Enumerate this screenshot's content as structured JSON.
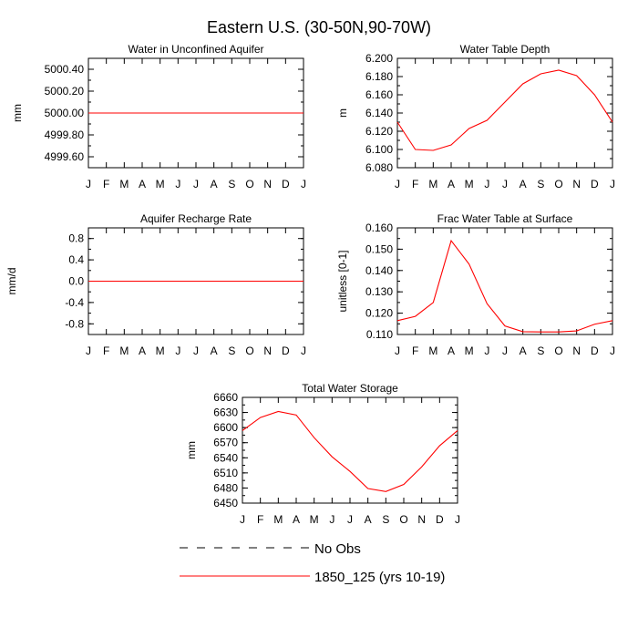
{
  "figure": {
    "title": "Eastern U.S. (30-50N,90-70W)",
    "colors": {
      "model": "#ff0000",
      "obs": "#000000",
      "axes": "#000000"
    }
  },
  "legend": {
    "entries": [
      {
        "label": "No Obs",
        "style": "dashed",
        "color": "#000000"
      },
      {
        "label": "1850_125 (yrs 10-19)",
        "style": "solid",
        "color": "#ff0000"
      }
    ]
  },
  "chart_data": [
    {
      "type": "line",
      "title": "Water in Unconfined Aquifer",
      "xlabel": "",
      "ylabel": "mm",
      "categories": [
        "J",
        "F",
        "M",
        "A",
        "M",
        "J",
        "J",
        "A",
        "S",
        "O",
        "N",
        "D",
        "J"
      ],
      "ylim": [
        4999.5,
        5000.5
      ],
      "yticks": [
        4999.6,
        4999.8,
        5000.0,
        5000.2,
        5000.4
      ],
      "ytick_labels": [
        "4999.60",
        "4999.80",
        "5000.00",
        "5000.20",
        "5000.40"
      ],
      "series": [
        {
          "name": "1850_125 (yrs 10-19)",
          "color": "#ff0000",
          "values": [
            5000,
            5000,
            5000,
            5000,
            5000,
            5000,
            5000,
            5000,
            5000,
            5000,
            5000,
            5000,
            5000
          ]
        }
      ]
    },
    {
      "type": "line",
      "title": "Water Table Depth",
      "xlabel": "",
      "ylabel": "m",
      "categories": [
        "J",
        "F",
        "M",
        "A",
        "M",
        "J",
        "J",
        "A",
        "S",
        "O",
        "N",
        "D",
        "J"
      ],
      "ylim": [
        6.08,
        6.2
      ],
      "yticks": [
        6.08,
        6.1,
        6.12,
        6.14,
        6.16,
        6.18,
        6.2
      ],
      "ytick_labels": [
        "6.080",
        "6.100",
        "6.120",
        "6.140",
        "6.160",
        "6.180",
        "6.200"
      ],
      "series": [
        {
          "name": "1850_125 (yrs 10-19)",
          "color": "#ff0000",
          "values": [
            6.13,
            6.1,
            6.099,
            6.105,
            6.123,
            6.132,
            6.152,
            6.172,
            6.183,
            6.187,
            6.181,
            6.16,
            6.13
          ]
        }
      ]
    },
    {
      "type": "line",
      "title": "Aquifer Recharge Rate",
      "xlabel": "",
      "ylabel": "mm/d",
      "categories": [
        "J",
        "F",
        "M",
        "A",
        "M",
        "J",
        "J",
        "A",
        "S",
        "O",
        "N",
        "D",
        "J"
      ],
      "ylim": [
        -1.0,
        1.0
      ],
      "yticks": [
        -0.8,
        -0.4,
        0.0,
        0.4,
        0.8
      ],
      "ytick_labels": [
        "-0.8",
        "-0.4",
        "0.0",
        "0.4",
        "0.8"
      ],
      "series": [
        {
          "name": "1850_125 (yrs 10-19)",
          "color": "#ff0000",
          "values": [
            0,
            0,
            0,
            0,
            0,
            0,
            0,
            0,
            0,
            0,
            0,
            0,
            0
          ]
        }
      ]
    },
    {
      "type": "line",
      "title": "Frac Water Table at Surface",
      "xlabel": "",
      "ylabel": "unitless [0-1]",
      "categories": [
        "J",
        "F",
        "M",
        "A",
        "M",
        "J",
        "J",
        "A",
        "S",
        "O",
        "N",
        "D",
        "J"
      ],
      "ylim": [
        0.11,
        0.16
      ],
      "yticks": [
        0.11,
        0.12,
        0.13,
        0.14,
        0.15,
        0.16
      ],
      "ytick_labels": [
        "0.110",
        "0.120",
        "0.130",
        "0.140",
        "0.150",
        "0.160"
      ],
      "series": [
        {
          "name": "1850_125 (yrs 10-19)",
          "color": "#ff0000",
          "values": [
            0.1165,
            0.1185,
            0.125,
            0.154,
            0.143,
            0.1245,
            0.114,
            0.1113,
            0.1112,
            0.1112,
            0.1117,
            0.1148,
            0.1165
          ]
        }
      ]
    },
    {
      "type": "line",
      "title": "Total Water Storage",
      "xlabel": "",
      "ylabel": "mm",
      "categories": [
        "J",
        "F",
        "M",
        "A",
        "M",
        "J",
        "J",
        "A",
        "S",
        "O",
        "N",
        "D",
        "J"
      ],
      "ylim": [
        6450,
        6660
      ],
      "yticks": [
        6450,
        6480,
        6510,
        6540,
        6570,
        6600,
        6630,
        6660
      ],
      "ytick_labels": [
        "6450",
        "6480",
        "6510",
        "6540",
        "6570",
        "6600",
        "6630",
        "6660"
      ],
      "series": [
        {
          "name": "1850_125 (yrs 10-19)",
          "color": "#ff0000",
          "values": [
            6594,
            6620,
            6632,
            6625,
            6580,
            6542,
            6513,
            6479,
            6473,
            6487,
            6522,
            6564,
            6594
          ]
        }
      ]
    }
  ]
}
